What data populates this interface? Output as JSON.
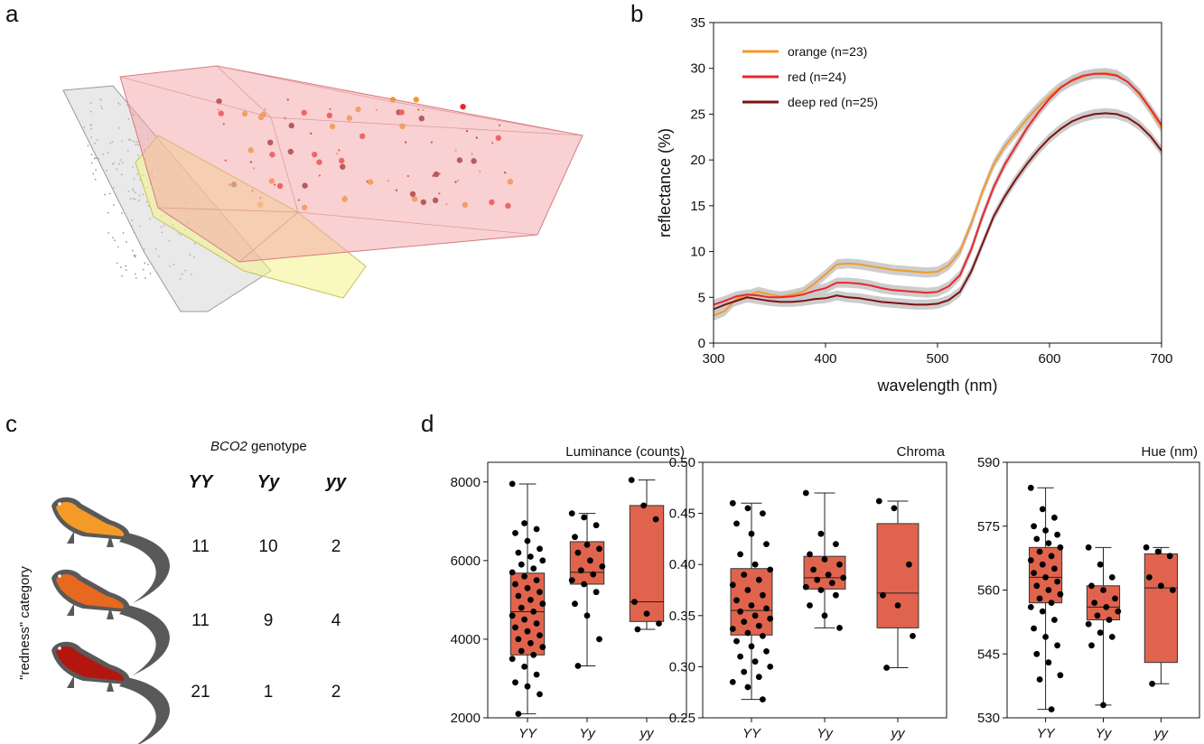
{
  "panels": {
    "a": "a",
    "b": "b",
    "c": "c",
    "d": "d"
  },
  "colors": {
    "orange": "#f39a29",
    "red": "#e8262b",
    "deepred": "#7b1212",
    "band": "#c8c8c8",
    "box": "#e0644d",
    "hull_red": "#f4a3a6",
    "hull_yellow": "#f4f28a",
    "hull_gray": "#cfcfcf"
  },
  "panel_c": {
    "genotype_title": "BCO2 genotype",
    "genotype_title_italic": "BCO2",
    "genotype_title_rest": " genotype",
    "columns": [
      "YY",
      "Yy",
      "yy"
    ],
    "row_axis_label": "\"redness\" category",
    "rows": [
      {
        "icon": "orange-lizard-icon",
        "counts": [
          "11",
          "10",
          "2"
        ]
      },
      {
        "icon": "red-lizard-icon",
        "counts": [
          "11",
          "9",
          "4"
        ]
      },
      {
        "icon": "deep-red-lizard-icon",
        "counts": [
          "21",
          "1",
          "2"
        ]
      }
    ]
  },
  "chart_data": [
    {
      "id": "b",
      "type": "line",
      "xlabel": "wavelength (nm)",
      "ylabel": "reflectance (%)",
      "xlim": [
        300,
        700
      ],
      "ylim": [
        0,
        35
      ],
      "xticks": [
        300,
        400,
        500,
        600,
        700
      ],
      "yticks": [
        0,
        5,
        10,
        15,
        20,
        25,
        30,
        35
      ],
      "legend_position": "top-left",
      "grid": false,
      "x": [
        300,
        310,
        320,
        330,
        340,
        350,
        360,
        370,
        380,
        390,
        400,
        410,
        420,
        430,
        440,
        450,
        460,
        470,
        480,
        490,
        500,
        510,
        520,
        530,
        540,
        550,
        560,
        570,
        580,
        590,
        600,
        610,
        620,
        630,
        640,
        650,
        660,
        670,
        680,
        690,
        700
      ],
      "series": [
        {
          "name": "orange (n=23)",
          "color": "#f39a29",
          "values": [
            3.0,
            3.5,
            4.8,
            5.2,
            5.6,
            5.3,
            5.1,
            5.3,
            5.6,
            6.5,
            7.5,
            8.6,
            8.7,
            8.6,
            8.4,
            8.2,
            8.0,
            7.9,
            7.8,
            7.7,
            7.8,
            8.5,
            10.0,
            13.0,
            16.5,
            19.5,
            21.5,
            23.0,
            24.5,
            25.8,
            27.0,
            28.0,
            28.6,
            29.1,
            29.4,
            29.5,
            29.3,
            28.5,
            27.2,
            25.5,
            23.5
          ]
        },
        {
          "name": "red (n=24)",
          "color": "#e8262b",
          "values": [
            4.2,
            4.6,
            5.1,
            5.3,
            5.2,
            5.0,
            5.0,
            5.1,
            5.3,
            5.7,
            6.0,
            6.6,
            6.6,
            6.5,
            6.3,
            6.0,
            5.8,
            5.7,
            5.6,
            5.5,
            5.6,
            6.2,
            7.4,
            10.2,
            13.8,
            17.0,
            19.5,
            21.5,
            23.5,
            25.2,
            26.7,
            27.9,
            28.7,
            29.2,
            29.4,
            29.4,
            29.2,
            28.5,
            27.3,
            25.6,
            23.8
          ]
        },
        {
          "name": "deep red (n=25)",
          "color": "#7b1212",
          "values": [
            3.7,
            4.2,
            4.6,
            5.0,
            4.8,
            4.6,
            4.5,
            4.5,
            4.6,
            4.8,
            4.9,
            5.2,
            5.0,
            4.9,
            4.7,
            4.5,
            4.4,
            4.3,
            4.2,
            4.2,
            4.3,
            4.7,
            5.6,
            7.8,
            10.8,
            13.8,
            16.0,
            17.9,
            19.6,
            21.1,
            22.4,
            23.4,
            24.2,
            24.7,
            25.0,
            25.1,
            25.0,
            24.6,
            23.8,
            22.6,
            21.0
          ]
        }
      ]
    },
    {
      "id": "d1",
      "type": "box",
      "title": "Luminance (counts)",
      "categories": [
        "YY",
        "Yy",
        "yy"
      ],
      "ylim": [
        2000,
        8500
      ],
      "yticks": [
        2000,
        4000,
        6000,
        8000
      ],
      "boxes": [
        {
          "min": 2100,
          "q1": 3600,
          "median": 4700,
          "q3": 5680,
          "max": 7950
        },
        {
          "min": 3320,
          "q1": 5400,
          "median": 5700,
          "q3": 6480,
          "max": 7200
        },
        {
          "min": 4250,
          "q1": 4450,
          "median": 4950,
          "q3": 7400,
          "max": 8050
        }
      ],
      "points": [
        [
          7950,
          6950,
          6800,
          6700,
          6500,
          6300,
          6200,
          6100,
          6000,
          5900,
          5800,
          5700,
          5600,
          5500,
          5400,
          5300,
          5200,
          5100,
          5000,
          4900,
          4800,
          4700,
          4600,
          4500,
          4400,
          4300,
          4200,
          4100,
          4000,
          3900,
          3800,
          3700,
          3600,
          3500,
          3300,
          3100,
          2900,
          2800,
          2600,
          2100
        ],
        [
          7200,
          7100,
          6900,
          6600,
          6400,
          6300,
          6200,
          6000,
          5850,
          5750,
          5650,
          5500,
          5400,
          5200,
          4900,
          4600,
          4000,
          3320
        ],
        [
          8050,
          7400,
          7050,
          4950,
          4650,
          4400,
          4250
        ]
      ]
    },
    {
      "id": "d2",
      "type": "box",
      "title": "Chroma",
      "categories": [
        "YY",
        "Yy",
        "yy"
      ],
      "ylim": [
        0.25,
        0.5
      ],
      "yticks": [
        0.25,
        0.3,
        0.35,
        0.4,
        0.45,
        0.5
      ],
      "boxes": [
        {
          "min": 0.268,
          "q1": 0.331,
          "median": 0.355,
          "q3": 0.396,
          "max": 0.46
        },
        {
          "min": 0.338,
          "q1": 0.376,
          "median": 0.387,
          "q3": 0.408,
          "max": 0.47
        },
        {
          "min": 0.299,
          "q1": 0.338,
          "median": 0.372,
          "q3": 0.44,
          "max": 0.462
        }
      ],
      "points": [
        [
          0.46,
          0.455,
          0.45,
          0.44,
          0.43,
          0.42,
          0.41,
          0.4,
          0.395,
          0.39,
          0.385,
          0.38,
          0.375,
          0.37,
          0.365,
          0.36,
          0.357,
          0.354,
          0.35,
          0.347,
          0.344,
          0.34,
          0.337,
          0.333,
          0.33,
          0.325,
          0.32,
          0.315,
          0.31,
          0.305,
          0.3,
          0.295,
          0.29,
          0.285,
          0.28,
          0.268
        ],
        [
          0.47,
          0.43,
          0.42,
          0.41,
          0.405,
          0.4,
          0.395,
          0.39,
          0.387,
          0.385,
          0.382,
          0.378,
          0.375,
          0.37,
          0.36,
          0.35,
          0.338
        ],
        [
          0.462,
          0.455,
          0.4,
          0.37,
          0.36,
          0.33,
          0.299
        ]
      ]
    },
    {
      "id": "d3",
      "type": "box",
      "title": "Hue (nm)",
      "categories": [
        "YY",
        "Yy",
        "yy"
      ],
      "ylim": [
        530,
        590
      ],
      "yticks": [
        530,
        545,
        560,
        575,
        590
      ],
      "boxes": [
        {
          "min": 532,
          "q1": 557,
          "median": 563,
          "q3": 570,
          "max": 584
        },
        {
          "min": 533,
          "q1": 553,
          "median": 556,
          "q3": 561,
          "max": 570
        },
        {
          "min": 538,
          "q1": 543,
          "median": 560.5,
          "q3": 568.5,
          "max": 570
        }
      ],
      "points": [
        [
          584,
          579,
          577,
          575,
          574,
          573,
          572,
          571,
          570,
          569,
          568,
          567,
          566,
          565,
          564,
          563,
          562,
          561,
          560,
          559,
          558,
          557,
          556,
          555,
          553,
          551,
          549,
          547,
          545,
          543,
          540,
          539,
          532
        ],
        [
          570,
          566,
          563,
          561,
          560,
          558,
          557,
          556,
          555,
          554,
          553,
          552,
          550,
          549,
          547,
          533
        ],
        [
          570,
          569,
          568,
          563,
          561,
          560,
          538
        ]
      ]
    }
  ]
}
